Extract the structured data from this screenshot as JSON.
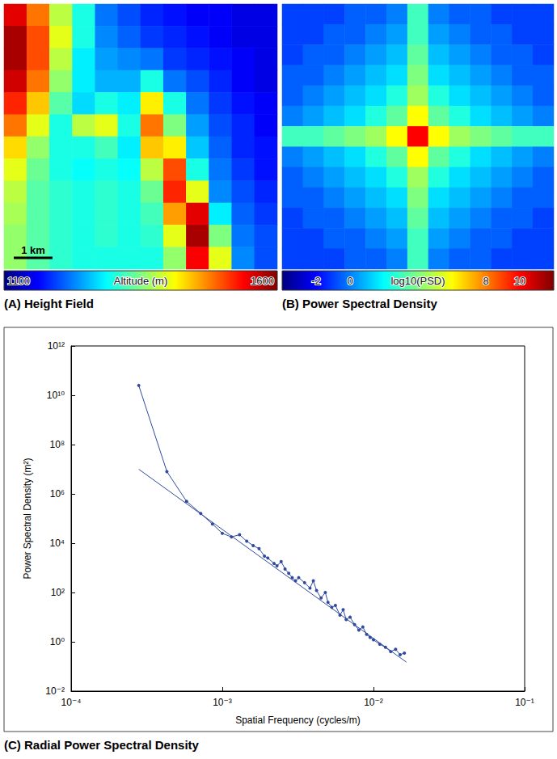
{
  "chart_data": [
    {
      "type": "heatmap",
      "title": "(A) Height Field",
      "color": "jet",
      "tick_labels": false,
      "scale_bar": "1 km",
      "cells": [
        [
          1550,
          1480,
          1380,
          1300,
          1220,
          1200,
          1180,
          1170,
          1160,
          1160,
          1150,
          1150
        ],
        [
          1580,
          1500,
          1400,
          1300,
          1230,
          1210,
          1190,
          1180,
          1170,
          1160,
          1150,
          1150
        ],
        [
          1580,
          1500,
          1380,
          1280,
          1240,
          1230,
          1220,
          1190,
          1180,
          1170,
          1160,
          1150
        ],
        [
          1560,
          1480,
          1360,
          1280,
          1250,
          1250,
          1300,
          1220,
          1200,
          1180,
          1160,
          1150
        ],
        [
          1520,
          1440,
          1330,
          1270,
          1300,
          1280,
          1420,
          1300,
          1220,
          1190,
          1170,
          1160
        ],
        [
          1480,
          1400,
          1300,
          1380,
          1400,
          1300,
          1480,
          1350,
          1240,
          1200,
          1180,
          1160
        ],
        [
          1430,
          1360,
          1300,
          1300,
          1320,
          1280,
          1440,
          1420,
          1260,
          1210,
          1180,
          1170
        ],
        [
          1400,
          1340,
          1300,
          1290,
          1300,
          1290,
          1380,
          1500,
          1300,
          1220,
          1190,
          1170
        ],
        [
          1380,
          1330,
          1310,
          1300,
          1310,
          1300,
          1340,
          1520,
          1400,
          1230,
          1200,
          1180
        ],
        [
          1370,
          1330,
          1310,
          1300,
          1310,
          1300,
          1320,
          1460,
          1550,
          1280,
          1210,
          1190
        ],
        [
          1360,
          1330,
          1310,
          1300,
          1310,
          1300,
          1310,
          1400,
          1580,
          1350,
          1220,
          1200
        ],
        [
          1360,
          1330,
          1310,
          1300,
          1300,
          1300,
          1300,
          1360,
          1540,
          1400,
          1230,
          1200
        ]
      ],
      "colorbar": {
        "label": "Altitude (m)",
        "range": [
          1100,
          1600
        ],
        "ticks": [
          1100,
          1600
        ]
      }
    },
    {
      "type": "heatmap",
      "title": "(B) Power Spectral Density",
      "color": "jet",
      "tick_labels": false,
      "cells": [
        [
          -1,
          -1,
          -1,
          -0.5,
          -0.5,
          0,
          3,
          0,
          -0.5,
          -0.5,
          -1,
          -1,
          -1
        ],
        [
          -1,
          -1,
          -0.5,
          -0.5,
          0,
          0.5,
          3,
          0.5,
          0,
          -0.5,
          -0.5,
          -1,
          -1
        ],
        [
          -1,
          -0.5,
          -0.5,
          0,
          0.5,
          1,
          3.5,
          1,
          0.5,
          0,
          -0.5,
          -0.5,
          -1
        ],
        [
          -0.5,
          -0.5,
          0,
          0.5,
          1,
          1.5,
          4,
          1.5,
          1,
          0.5,
          0,
          -0.5,
          -0.5
        ],
        [
          -0.5,
          0,
          0.5,
          1,
          1.5,
          2.5,
          4.5,
          2.5,
          1.5,
          1,
          0.5,
          0,
          -0.5
        ],
        [
          0,
          0.5,
          1,
          1.5,
          2.5,
          3.5,
          6,
          3.5,
          2.5,
          1.5,
          1,
          0.5,
          0
        ],
        [
          3,
          3,
          3.5,
          4,
          4.5,
          6,
          10,
          6,
          4.5,
          4,
          3.5,
          3,
          3
        ],
        [
          0,
          0.5,
          1,
          1.5,
          2.5,
          3.5,
          6,
          3.5,
          2.5,
          1.5,
          1,
          0.5,
          0
        ],
        [
          -0.5,
          0,
          0.5,
          1,
          1.5,
          2.5,
          4.5,
          2.5,
          1.5,
          1,
          0.5,
          0,
          -0.5
        ],
        [
          -0.5,
          -0.5,
          0,
          0.5,
          1,
          1.5,
          4,
          1.5,
          1,
          0.5,
          0,
          -0.5,
          -0.5
        ],
        [
          -1,
          -0.5,
          -0.5,
          0,
          0.5,
          1,
          3.5,
          1,
          0.5,
          0,
          -0.5,
          -0.5,
          -1
        ],
        [
          -1,
          -1,
          -0.5,
          -0.5,
          0,
          0.5,
          3,
          0.5,
          0,
          -0.5,
          -0.5,
          -1,
          -1
        ],
        [
          -1,
          -1,
          -1,
          -0.5,
          -0.5,
          0,
          3,
          0,
          -0.5,
          -0.5,
          -1,
          -1,
          -1
        ]
      ],
      "colorbar": {
        "label": "log10(PSD)",
        "range": [
          -4,
          12
        ],
        "ticks": [
          -2,
          0,
          8,
          10
        ]
      }
    },
    {
      "type": "line",
      "title": "(C) Radial Power Spectral Density",
      "x_label": "Spatial Frequency (cycles/m)",
      "y_label": "Power Spectral Density (m²)",
      "log": true,
      "grid": false,
      "xlim": [
        0.0001,
        0.1
      ],
      "ylim": [
        0.01,
        1000000000000.0
      ],
      "xticks": [
        {
          "value": 0.0001,
          "label": "10⁻⁴"
        },
        {
          "value": 0.001,
          "label": "10⁻³"
        },
        {
          "value": 0.01,
          "label": "10⁻²"
        },
        {
          "value": 0.1,
          "label": "10⁻¹"
        }
      ],
      "yticks": [
        {
          "value": 0.01,
          "label": "10⁻²"
        },
        {
          "value": 1,
          "label": "10⁰"
        },
        {
          "value": 100,
          "label": "10²"
        },
        {
          "value": 10000,
          "label": "10⁴"
        },
        {
          "value": 1000000,
          "label": "10⁶"
        },
        {
          "value": 100000000,
          "label": "10⁸"
        },
        {
          "value": 10000000000,
          "label": "10¹⁰"
        },
        {
          "value": 1000000000000.0,
          "label": "10¹²"
        }
      ],
      "series": [
        {
          "type": "line",
          "marker": "circle",
          "color": "#2f4a9e",
          "x": [
            0.00028,
            0.00043,
            0.00058,
            0.00072,
            0.00086,
            0.001,
            0.00115,
            0.0013,
            0.00145,
            0.0016,
            0.00175,
            0.0019,
            0.002,
            0.0022,
            0.0023,
            0.00245,
            0.0026,
            0.00275,
            0.0029,
            0.00305,
            0.0032,
            0.0035,
            0.0038,
            0.004,
            0.0042,
            0.0045,
            0.0048,
            0.005,
            0.0053,
            0.0056,
            0.006,
            0.0063,
            0.0066,
            0.007,
            0.0075,
            0.008,
            0.0085,
            0.009,
            0.0095,
            0.01,
            0.011,
            0.012,
            0.013,
            0.014,
            0.015,
            0.016
          ],
          "values": [
            25000000000,
            8000000,
            500000,
            160000,
            60000,
            25000,
            18000,
            22000,
            12000,
            8000,
            6000,
            3000,
            2500,
            1500,
            1200,
            1800,
            900,
            600,
            400,
            300,
            400,
            250,
            150,
            300,
            120,
            60,
            100,
            40,
            25,
            30,
            12,
            20,
            8,
            10,
            5,
            3,
            4,
            2,
            1.5,
            1.2,
            0.8,
            0.6,
            0.4,
            0.5,
            0.3,
            0.35
          ]
        },
        {
          "type": "line",
          "line_style": "solid",
          "color": "#2f4a9e",
          "x": [
            0.00028,
            0.0165
          ],
          "values": [
            10000000,
            0.15
          ]
        }
      ]
    }
  ]
}
